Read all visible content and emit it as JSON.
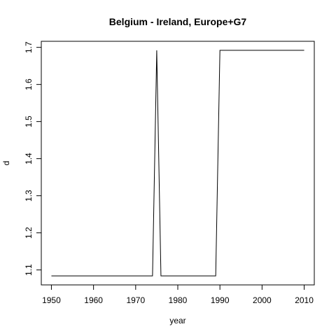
{
  "chart_data": {
    "type": "line",
    "title": "Belgium - Ireland, Europe+G7",
    "xlabel": "year",
    "ylabel": "d",
    "xlim": [
      1950,
      2010
    ],
    "ylim": [
      1.084,
      1.692
    ],
    "xticks": [
      1950,
      1960,
      1970,
      1980,
      1990,
      2000,
      2010
    ],
    "yticks": [
      1.1,
      1.2,
      1.3,
      1.4,
      1.5,
      1.6,
      1.7
    ],
    "series": [
      {
        "x": [
          1950,
          1974,
          1975,
          1976,
          1989,
          1990,
          2010
        ],
        "y": [
          1.084,
          1.084,
          1.692,
          1.084,
          1.084,
          1.692,
          1.692
        ]
      }
    ],
    "grid": false,
    "legend": "none"
  }
}
